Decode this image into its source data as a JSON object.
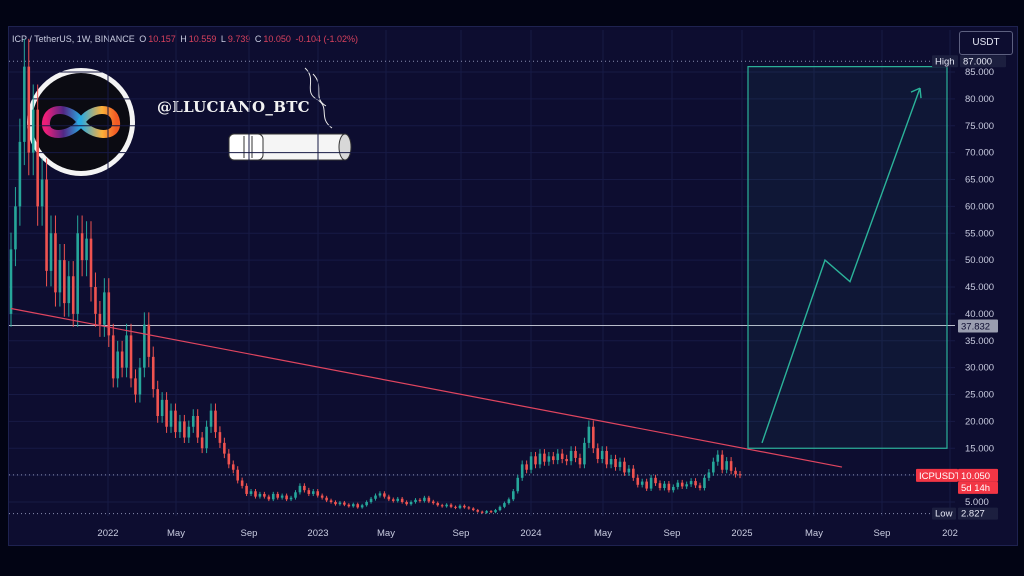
{
  "header": {
    "pair": "ICP / TetherUS, 1W, BINANCE",
    "open_label": "O",
    "open": "10.157",
    "high_label": "H",
    "high": "10.559",
    "low_label": "L",
    "low": "9.739",
    "close_label": "C",
    "close": "10.050",
    "change": "-0.104 (-1.02%)"
  },
  "currency_button": "USDT",
  "watermark": "@LLUCIANO_BTC",
  "colors": {
    "background": "#0d0d30",
    "up": "#26a69a",
    "down": "#ef5350",
    "trendline": "#e0455f",
    "projection": "#2bb39a",
    "level": "#b8bccb"
  },
  "chart_data": {
    "type": "candlestick",
    "x_ticks": [
      "2022",
      "May",
      "Sep",
      "2023",
      "May",
      "Sep",
      "2024",
      "May",
      "Sep",
      "2025",
      "May",
      "Sep",
      "202"
    ],
    "y_ticks": [
      "5.000",
      "10.000",
      "15.000",
      "20.000",
      "25.000",
      "30.000",
      "35.000",
      "40.000",
      "45.000",
      "50.000",
      "55.000",
      "60.000",
      "65.000",
      "70.000",
      "75.000",
      "80.000",
      "85.000"
    ],
    "ylim": [
      0,
      88
    ],
    "high_label": "High",
    "high_value": "87.000",
    "low_label": "Low",
    "low_value": "2.827",
    "level_value": "37.832",
    "last_label": "ICPUSDT",
    "last_value": "10.050",
    "countdown": "5d 14h",
    "projection_path": [
      16,
      50,
      46,
      82
    ],
    "box_range": [
      15,
      86
    ],
    "trendline": [
      41,
      11.5
    ]
  }
}
